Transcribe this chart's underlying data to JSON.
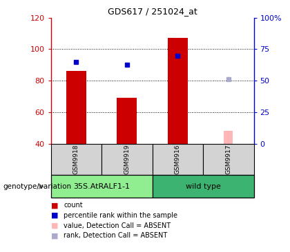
{
  "title": "GDS617 / 251024_at",
  "samples": [
    "GSM9918",
    "GSM9919",
    "GSM9916",
    "GSM9917"
  ],
  "groups": [
    "35S.AtRALF1-1",
    "35S.AtRALF1-1",
    "wild type",
    "wild type"
  ],
  "bar_values": [
    86,
    69,
    107,
    null
  ],
  "bar_color": "#cc0000",
  "dot_values": [
    92,
    90,
    96,
    null
  ],
  "dot_color": "#0000cc",
  "absent_bar_value_idx": 3,
  "absent_bar_value": 48,
  "absent_dot_value_idx": 3,
  "absent_dot_value": 81,
  "absent_bar_color": "#ffb6b6",
  "absent_dot_color": "#aaaacc",
  "ylim_left": [
    40,
    120
  ],
  "ylim_right": [
    0,
    100
  ],
  "yticks_left": [
    40,
    60,
    80,
    100,
    120
  ],
  "ytick_labels_left": [
    "40",
    "60",
    "80",
    "100",
    "120"
  ],
  "yticks_right": [
    0,
    25,
    50,
    75,
    100
  ],
  "ytick_labels_right": [
    "0",
    "25",
    "50",
    "75",
    "100%"
  ],
  "left_axis_color": "#cc0000",
  "right_axis_color": "#0000cc",
  "group_colors": {
    "35S.AtRALF1-1": "#90ee90",
    "wild type": "#3cb371"
  },
  "legend_items": [
    {
      "label": "count",
      "color": "#cc0000"
    },
    {
      "label": "percentile rank within the sample",
      "color": "#0000cc"
    },
    {
      "label": "value, Detection Call = ABSENT",
      "color": "#ffb6b6"
    },
    {
      "label": "rank, Detection Call = ABSENT",
      "color": "#aaaacc"
    }
  ],
  "bar_width": 0.4,
  "baseline": 40,
  "group_label": "genotype/variation"
}
